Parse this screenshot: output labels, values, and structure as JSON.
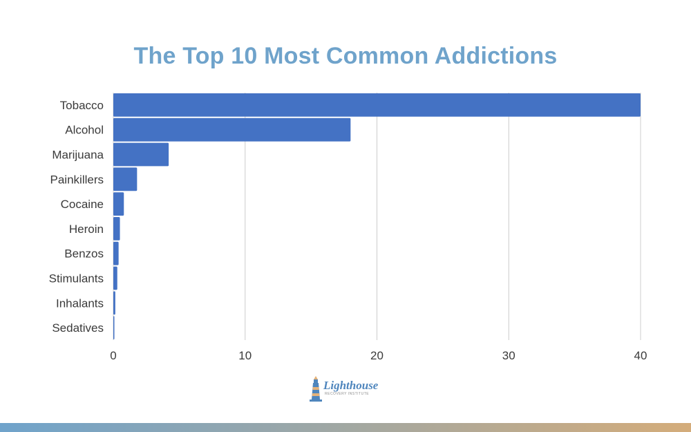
{
  "chart_data": {
    "type": "bar",
    "orientation": "horizontal",
    "title": "The Top 10 Most Common Addictions",
    "categories": [
      "Tobacco",
      "Alcohol",
      "Marijuana",
      "Painkillers",
      "Cocaine",
      "Heroin",
      "Benzos",
      "Stimulants",
      "Inhalants",
      "Sedatives"
    ],
    "values": [
      40,
      18,
      4.2,
      1.8,
      0.8,
      0.5,
      0.4,
      0.3,
      0.15,
      0.05
    ],
    "xlim": [
      0,
      40
    ],
    "xticks": [
      0,
      10,
      20,
      30,
      40
    ],
    "xlabel": "",
    "ylabel": "",
    "grid": "vertical",
    "bar_color": "#4472c4"
  },
  "colors": {
    "title": "#6fa3cb",
    "grid": "#cccccc",
    "bottom_bar_start": "#6fa3cb",
    "bottom_bar_end": "#d4ac7a"
  },
  "logo": {
    "name": "Lighthouse",
    "subtitle": "RECOVERY INSTITUTE",
    "icon": "lighthouse-icon"
  }
}
